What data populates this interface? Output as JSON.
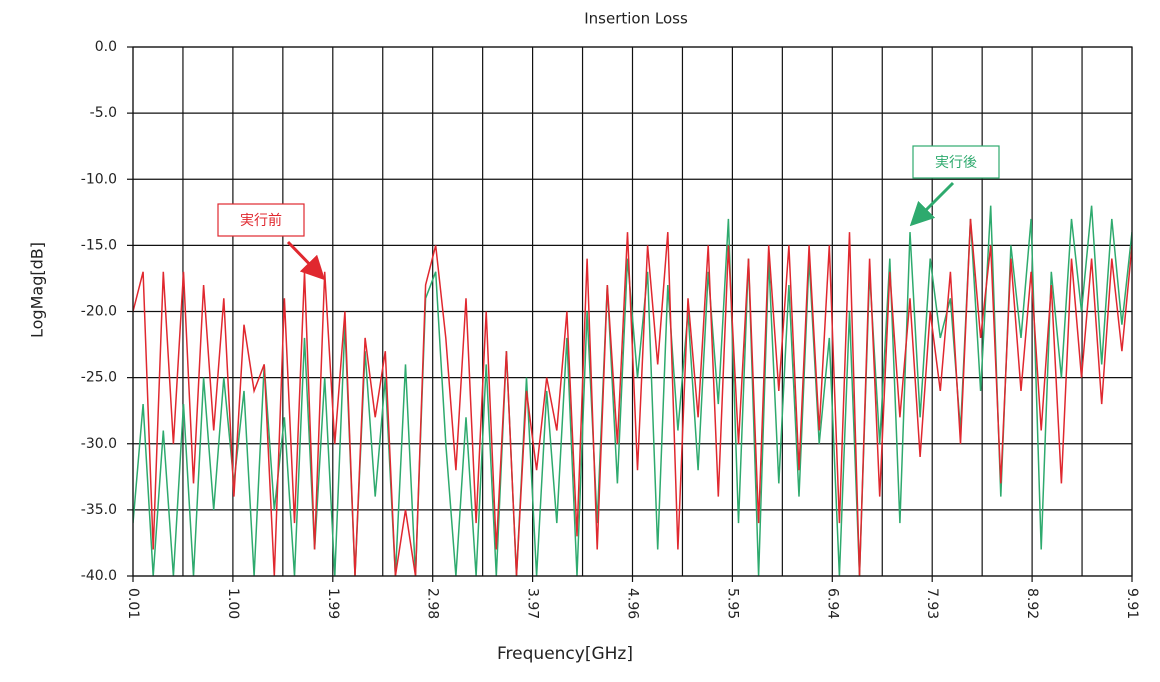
{
  "chart_data": {
    "type": "line",
    "title": "Insertion Loss",
    "x_label": "Frequency[GHz]",
    "y_label": "LogMag[dB]",
    "x": [
      0.01,
      0.11,
      0.21,
      0.31,
      0.41,
      0.51,
      0.61,
      0.71,
      0.81,
      0.91,
      1.01,
      1.11,
      1.21,
      1.31,
      1.41,
      1.51,
      1.61,
      1.71,
      1.81,
      1.91,
      2.01,
      2.11,
      2.21,
      2.31,
      2.41,
      2.51,
      2.61,
      2.71,
      2.81,
      2.91,
      3.01,
      3.11,
      3.21,
      3.31,
      3.41,
      3.51,
      3.61,
      3.71,
      3.81,
      3.91,
      4.01,
      4.11,
      4.21,
      4.31,
      4.41,
      4.51,
      4.61,
      4.71,
      4.81,
      4.91,
      5.01,
      5.11,
      5.21,
      5.31,
      5.41,
      5.51,
      5.61,
      5.71,
      5.81,
      5.91,
      6.01,
      6.11,
      6.21,
      6.31,
      6.41,
      6.51,
      6.61,
      6.71,
      6.81,
      6.91,
      7.01,
      7.11,
      7.21,
      7.31,
      7.41,
      7.51,
      7.61,
      7.71,
      7.81,
      7.91,
      8.01,
      8.11,
      8.21,
      8.31,
      8.41,
      8.51,
      8.61,
      8.71,
      8.81,
      8.91,
      9.01,
      9.11,
      9.21,
      9.31,
      9.41,
      9.51,
      9.61,
      9.71,
      9.81,
      9.91
    ],
    "series": [
      {
        "name": "実行後",
        "color": "#2eaa6e",
        "values": [
          -36,
          -27,
          -40,
          -29,
          -40,
          -27,
          -40,
          -25,
          -35,
          -25,
          -33,
          -26,
          -40,
          -24,
          -35,
          -28,
          -40,
          -22,
          -38,
          -25,
          -40,
          -21,
          -40,
          -23,
          -34,
          -25,
          -40,
          -24,
          -40,
          -19,
          -17,
          -30,
          -40,
          -28,
          -40,
          -24,
          -40,
          -23,
          -40,
          -25,
          -40,
          -26,
          -36,
          -22,
          -40,
          -20,
          -36,
          -18,
          -33,
          -16,
          -25,
          -17,
          -38,
          -18,
          -29,
          -20,
          -32,
          -17,
          -27,
          -13,
          -36,
          -16,
          -40,
          -16,
          -33,
          -18,
          -34,
          -16,
          -30,
          -22,
          -40,
          -20,
          -40,
          -17,
          -30,
          -16,
          -36,
          -14,
          -28,
          -16,
          -22,
          -19,
          -29,
          -13,
          -26,
          -12,
          -34,
          -15,
          -22,
          -13,
          -38,
          -17,
          -25,
          -13,
          -20,
          -12,
          -24,
          -13,
          -21,
          -14
        ]
      },
      {
        "name": "実行前",
        "color": "#e0282f",
        "values": [
          -20,
          -17,
          -38,
          -17,
          -30,
          -17,
          -33,
          -18,
          -29,
          -19,
          -34,
          -21,
          -26,
          -24,
          -40,
          -19,
          -36,
          -17,
          -38,
          -17,
          -30,
          -20,
          -40,
          -22,
          -28,
          -23,
          -40,
          -35,
          -40,
          -18,
          -15,
          -22,
          -32,
          -19,
          -36,
          -20,
          -38,
          -23,
          -40,
          -26,
          -32,
          -25,
          -29,
          -20,
          -37,
          -16,
          -38,
          -18,
          -30,
          -14,
          -32,
          -15,
          -24,
          -14,
          -38,
          -19,
          -28,
          -15,
          -34,
          -15,
          -30,
          -16,
          -36,
          -15,
          -26,
          -15,
          -32,
          -15,
          -29,
          -15,
          -36,
          -14,
          -40,
          -16,
          -34,
          -17,
          -28,
          -19,
          -31,
          -20,
          -26,
          -17,
          -30,
          -13,
          -22,
          -15,
          -33,
          -16,
          -26,
          -17,
          -29,
          -18,
          -33,
          -16,
          -25,
          -16,
          -27,
          -16,
          -23,
          -15
        ]
      }
    ],
    "xlim": [
      0.01,
      9.91
    ],
    "ylim": [
      -40,
      0
    ],
    "xticks": [
      0.01,
      {
        "value": 1,
        "label": "1.00"
      },
      1.99,
      2.98,
      3.97,
      4.96,
      5.95,
      6.94,
      7.93,
      8.92,
      9.91
    ],
    "xminor": [
      0.505,
      1.495,
      2.485,
      3.475,
      4.465,
      5.455,
      6.445,
      7.435,
      8.425,
      9.415
    ],
    "yticks": [
      {
        "value": 0,
        "label": "0.0"
      },
      {
        "value": -5,
        "label": "-5.0"
      },
      {
        "value": -10,
        "label": "-10.0"
      },
      {
        "value": -15,
        "label": "-15.0"
      },
      {
        "value": -20,
        "label": "-20.0"
      },
      {
        "value": -25,
        "label": "-25.0"
      },
      {
        "value": -30,
        "label": "-30.0"
      },
      {
        "value": -35,
        "label": "-35.0"
      },
      {
        "value": -40,
        "label": "-40.0"
      }
    ],
    "grid": true
  }
}
